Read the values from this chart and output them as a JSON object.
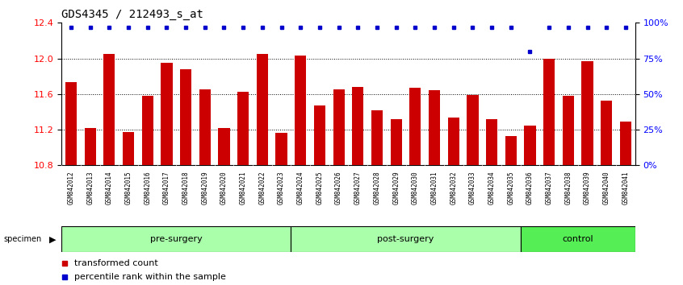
{
  "title": "GDS4345 / 212493_s_at",
  "categories": [
    "GSM842012",
    "GSM842013",
    "GSM842014",
    "GSM842015",
    "GSM842016",
    "GSM842017",
    "GSM842018",
    "GSM842019",
    "GSM842020",
    "GSM842021",
    "GSM842022",
    "GSM842023",
    "GSM842024",
    "GSM842025",
    "GSM842026",
    "GSM842027",
    "GSM842028",
    "GSM842029",
    "GSM842030",
    "GSM842031",
    "GSM842032",
    "GSM842033",
    "GSM842034",
    "GSM842035",
    "GSM842036",
    "GSM842037",
    "GSM842038",
    "GSM842039",
    "GSM842040",
    "GSM842041"
  ],
  "bar_values": [
    11.73,
    11.22,
    12.05,
    11.17,
    11.58,
    11.95,
    11.88,
    11.65,
    11.22,
    11.63,
    12.05,
    11.16,
    12.03,
    11.47,
    11.65,
    11.68,
    11.42,
    11.32,
    11.67,
    11.64,
    11.34,
    11.59,
    11.32,
    11.13,
    11.25,
    12.0,
    11.58,
    11.97,
    11.53,
    11.29
  ],
  "percentile_values": [
    97,
    97,
    97,
    97,
    97,
    97,
    97,
    97,
    97,
    97,
    97,
    97,
    97,
    97,
    97,
    97,
    97,
    97,
    97,
    97,
    97,
    97,
    97,
    97,
    80,
    97,
    97,
    97,
    97,
    97
  ],
  "bar_color": "#cc0000",
  "dot_color": "#0000cc",
  "ylim": [
    10.8,
    12.4
  ],
  "ylim_right": [
    0,
    100
  ],
  "yticks_left": [
    10.8,
    11.2,
    11.6,
    12.0,
    12.4
  ],
  "yticks_right": [
    0,
    25,
    50,
    75,
    100
  ],
  "group_definitions": [
    {
      "label": "pre-surgery",
      "start": 0,
      "end": 11,
      "color": "#aaffaa"
    },
    {
      "label": "post-surgery",
      "start": 12,
      "end": 23,
      "color": "#aaffaa"
    },
    {
      "label": "control",
      "start": 24,
      "end": 29,
      "color": "#55ee55"
    }
  ],
  "legend_items": [
    {
      "label": "transformed count",
      "color": "#cc0000"
    },
    {
      "label": "percentile rank within the sample",
      "color": "#0000cc"
    }
  ],
  "background_color": "#ffffff",
  "tick_area_color": "#cccccc",
  "title_fontsize": 10,
  "bar_width": 0.6
}
